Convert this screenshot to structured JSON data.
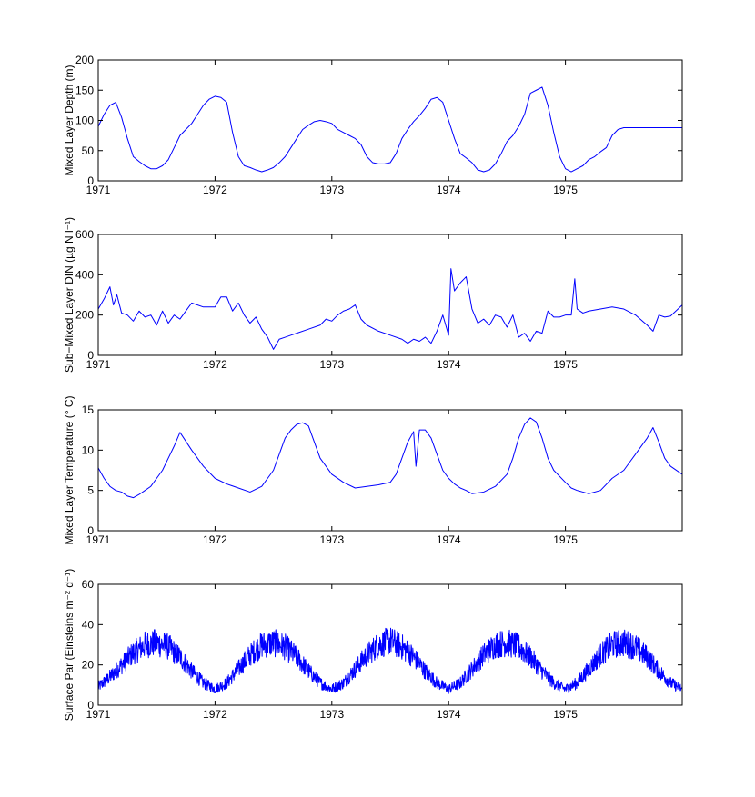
{
  "colors": {
    "line": "#0000ff",
    "axis": "#000000",
    "background": "#ffffff"
  },
  "chart_data": [
    {
      "type": "line",
      "ylabel": "Mixed Layer Depth (m)",
      "ylim": [
        0,
        200
      ],
      "yticks": [
        0,
        50,
        100,
        150,
        200
      ],
      "xlim": [
        1971,
        1976
      ],
      "xticks": [
        1971,
        1972,
        1973,
        1974,
        1975
      ],
      "grid": false,
      "series": [
        {
          "x": [
            1971.0,
            1971.05,
            1971.1,
            1971.15,
            1971.2,
            1971.25,
            1971.3,
            1971.35,
            1971.4,
            1971.45,
            1971.5,
            1971.55,
            1971.6,
            1971.65,
            1971.7,
            1971.75,
            1971.8,
            1971.85,
            1971.9,
            1971.95,
            1972.0,
            1972.05,
            1972.1,
            1972.15,
            1972.2,
            1972.25,
            1972.3,
            1972.35,
            1972.4,
            1972.45,
            1972.5,
            1972.55,
            1972.6,
            1972.65,
            1972.7,
            1972.75,
            1972.8,
            1972.85,
            1972.9,
            1972.95,
            1973.0,
            1973.05,
            1973.1,
            1973.15,
            1973.2,
            1973.25,
            1973.3,
            1973.35,
            1973.4,
            1973.45,
            1973.5,
            1973.55,
            1973.6,
            1973.65,
            1973.7,
            1973.75,
            1973.8,
            1973.85,
            1973.9,
            1973.95,
            1974.0,
            1974.05,
            1974.1,
            1974.15,
            1974.2,
            1974.25,
            1974.3,
            1974.35,
            1974.4,
            1974.45,
            1974.5,
            1974.55,
            1974.6,
            1974.65,
            1974.7,
            1974.75,
            1974.8,
            1974.85,
            1974.9,
            1974.95,
            1975.0,
            1975.05,
            1975.1,
            1975.15,
            1975.2,
            1975.25,
            1975.3,
            1975.35,
            1975.4,
            1975.45,
            1975.5,
            1975.55,
            1975.6,
            1975.65,
            1975.7,
            1975.75,
            1975.8,
            1975.85,
            1975.9,
            1975.95,
            1976.0
          ],
          "y": [
            90,
            110,
            125,
            130,
            105,
            70,
            40,
            32,
            25,
            20,
            20,
            25,
            35,
            55,
            75,
            85,
            95,
            110,
            125,
            135,
            140,
            138,
            130,
            80,
            40,
            25,
            22,
            18,
            15,
            18,
            22,
            30,
            40,
            55,
            70,
            85,
            92,
            98,
            100,
            98,
            95,
            85,
            80,
            75,
            70,
            60,
            40,
            30,
            28,
            28,
            30,
            45,
            70,
            85,
            98,
            108,
            120,
            135,
            138,
            130,
            100,
            70,
            45,
            38,
            30,
            18,
            15,
            18,
            28,
            45,
            65,
            75,
            90,
            110,
            145,
            150,
            155,
            125,
            80,
            40,
            20,
            15,
            20,
            25,
            35,
            40,
            48,
            55,
            75,
            85,
            88,
            88,
            88,
            88,
            88,
            88,
            88,
            88,
            88,
            88,
            88
          ]
        }
      ]
    },
    {
      "type": "line",
      "ylabel": "Sub−Mixed Layer DIN (µg N l⁻¹)",
      "ylim": [
        0,
        600
      ],
      "yticks": [
        0,
        200,
        400,
        600
      ],
      "xlim": [
        1971,
        1976
      ],
      "xticks": [
        1971,
        1972,
        1973,
        1974,
        1975
      ],
      "grid": false,
      "series": [
        {
          "x": [
            1971.0,
            1971.05,
            1971.1,
            1971.13,
            1971.16,
            1971.2,
            1971.25,
            1971.3,
            1971.35,
            1971.4,
            1971.45,
            1971.5,
            1971.55,
            1971.6,
            1971.65,
            1971.7,
            1971.75,
            1971.8,
            1971.9,
            1972.0,
            1972.05,
            1972.1,
            1972.15,
            1972.2,
            1972.25,
            1972.3,
            1972.35,
            1972.4,
            1972.45,
            1972.5,
            1972.55,
            1972.6,
            1972.65,
            1972.7,
            1972.8,
            1972.9,
            1972.95,
            1973.0,
            1973.05,
            1973.1,
            1973.15,
            1973.2,
            1973.25,
            1973.3,
            1973.4,
            1973.5,
            1973.6,
            1973.65,
            1973.7,
            1973.75,
            1973.8,
            1973.85,
            1973.9,
            1973.95,
            1974.0,
            1974.02,
            1974.05,
            1974.1,
            1974.15,
            1974.2,
            1974.25,
            1974.3,
            1974.35,
            1974.4,
            1974.45,
            1974.5,
            1974.55,
            1974.6,
            1974.65,
            1974.7,
            1974.75,
            1974.8,
            1974.85,
            1974.9,
            1974.95,
            1975.0,
            1975.05,
            1975.08,
            1975.1,
            1975.15,
            1975.2,
            1975.3,
            1975.4,
            1975.5,
            1975.6,
            1975.7,
            1975.75,
            1975.8,
            1975.85,
            1975.9,
            1976.0
          ],
          "y": [
            230,
            280,
            340,
            250,
            300,
            210,
            200,
            170,
            220,
            190,
            200,
            150,
            220,
            160,
            200,
            180,
            220,
            260,
            240,
            240,
            290,
            290,
            220,
            260,
            200,
            160,
            190,
            130,
            90,
            30,
            80,
            90,
            100,
            110,
            130,
            150,
            180,
            170,
            200,
            220,
            230,
            250,
            180,
            150,
            120,
            100,
            80,
            60,
            80,
            70,
            90,
            60,
            120,
            200,
            100,
            430,
            320,
            360,
            390,
            230,
            160,
            180,
            150,
            200,
            190,
            140,
            200,
            90,
            110,
            70,
            120,
            110,
            220,
            190,
            190,
            200,
            200,
            380,
            230,
            210,
            220,
            230,
            240,
            230,
            200,
            150,
            120,
            200,
            190,
            195,
            250
          ]
        }
      ]
    },
    {
      "type": "line",
      "ylabel": "Mixed Layer Temperature (° C)",
      "ylim": [
        0,
        15
      ],
      "yticks": [
        0,
        5,
        10,
        15
      ],
      "xlim": [
        1971,
        1976
      ],
      "xticks": [
        1971,
        1972,
        1973,
        1974,
        1975
      ],
      "grid": false,
      "series": [
        {
          "x": [
            1971.0,
            1971.05,
            1971.1,
            1971.15,
            1971.2,
            1971.25,
            1971.3,
            1971.35,
            1971.4,
            1971.45,
            1971.5,
            1971.55,
            1971.6,
            1971.65,
            1971.7,
            1971.8,
            1971.9,
            1972.0,
            1972.1,
            1972.2,
            1972.3,
            1972.4,
            1972.45,
            1972.5,
            1972.55,
            1972.6,
            1972.65,
            1972.7,
            1972.75,
            1972.8,
            1972.85,
            1972.9,
            1973.0,
            1973.1,
            1973.2,
            1973.3,
            1973.4,
            1973.5,
            1973.55,
            1973.6,
            1973.65,
            1973.7,
            1973.72,
            1973.75,
            1973.8,
            1973.85,
            1973.9,
            1973.95,
            1974.0,
            1974.05,
            1974.1,
            1974.15,
            1974.2,
            1974.3,
            1974.4,
            1974.5,
            1974.55,
            1974.6,
            1974.65,
            1974.7,
            1974.75,
            1974.8,
            1974.85,
            1974.9,
            1975.0,
            1975.05,
            1975.1,
            1975.15,
            1975.2,
            1975.3,
            1975.4,
            1975.5,
            1975.55,
            1975.6,
            1975.65,
            1975.7,
            1975.75,
            1975.8,
            1975.85,
            1975.9,
            1976.0
          ],
          "y": [
            7.8,
            6.5,
            5.5,
            5.0,
            4.8,
            4.3,
            4.1,
            4.5,
            5.0,
            5.5,
            6.5,
            7.5,
            9.0,
            10.5,
            12.2,
            10.0,
            8.0,
            6.5,
            5.8,
            5.3,
            4.8,
            5.5,
            6.5,
            7.5,
            9.5,
            11.5,
            12.5,
            13.2,
            13.4,
            13.0,
            11.0,
            9.0,
            7.0,
            6.0,
            5.3,
            5.5,
            5.7,
            6.0,
            7.0,
            9.0,
            11.0,
            12.3,
            8.0,
            12.5,
            12.5,
            11.5,
            9.5,
            7.5,
            6.5,
            5.8,
            5.3,
            5.0,
            4.6,
            4.8,
            5.5,
            7.0,
            9.0,
            11.5,
            13.2,
            14.0,
            13.5,
            11.5,
            9.0,
            7.5,
            6.0,
            5.3,
            5.0,
            4.8,
            4.6,
            5.0,
            6.5,
            7.5,
            8.5,
            9.5,
            10.5,
            11.5,
            12.8,
            11.0,
            9.0,
            8.0,
            7.0
          ]
        }
      ]
    },
    {
      "type": "line",
      "ylabel": "Surface Par (Einsteins m⁻² d⁻¹)",
      "ylim": [
        0,
        60
      ],
      "yticks": [
        0,
        20,
        40,
        60
      ],
      "xlim": [
        1971,
        1976
      ],
      "xticks": [
        1971,
        1972,
        1973,
        1974,
        1975
      ],
      "grid": false,
      "noise_amplitude": 7,
      "series": [
        {
          "x": [
            1971.0,
            1971.1,
            1971.2,
            1971.3,
            1971.4,
            1971.5,
            1971.6,
            1971.7,
            1971.8,
            1971.9,
            1972.0,
            1972.1,
            1972.2,
            1972.3,
            1972.4,
            1972.5,
            1972.6,
            1972.7,
            1972.8,
            1972.9,
            1973.0,
            1973.1,
            1973.2,
            1973.3,
            1973.4,
            1973.5,
            1973.6,
            1973.7,
            1973.8,
            1973.9,
            1974.0,
            1974.1,
            1974.2,
            1974.3,
            1974.4,
            1974.5,
            1974.6,
            1974.7,
            1974.8,
            1974.9,
            1975.0,
            1975.1,
            1975.2,
            1975.3,
            1975.4,
            1975.5,
            1975.6,
            1975.7,
            1975.8,
            1975.9,
            1976.0
          ],
          "y": [
            9,
            14,
            20,
            26,
            30,
            31,
            29,
            24,
            17,
            11,
            8,
            11,
            18,
            25,
            30,
            31,
            29,
            24,
            17,
            11,
            8,
            11,
            18,
            25,
            30,
            32,
            29,
            24,
            17,
            11,
            8,
            11,
            18,
            25,
            30,
            31,
            29,
            24,
            17,
            11,
            8,
            11,
            18,
            25,
            30,
            31,
            29,
            24,
            17,
            11,
            8
          ]
        }
      ]
    }
  ]
}
